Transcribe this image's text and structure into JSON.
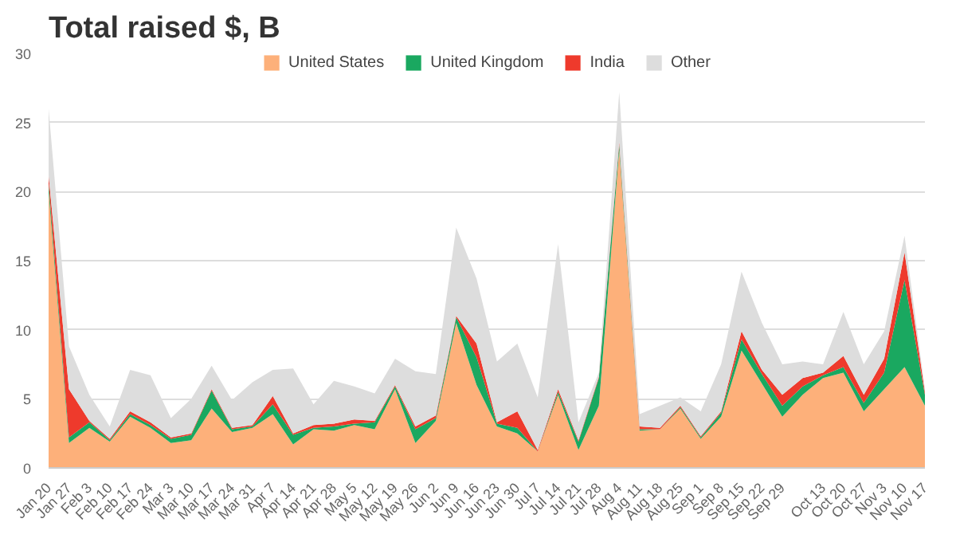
{
  "chart_data": {
    "type": "area",
    "stacked": true,
    "title": "Total raised $, B",
    "categories": [
      "Jan 20",
      "Jan 27",
      "Feb 3",
      "Feb 10",
      "Feb 17",
      "Feb 24",
      "Mar 3",
      "Mar 10",
      "Mar 17",
      "Mar 24",
      "Mar 31",
      "Apr 7",
      "Apr 14",
      "Apr 21",
      "Apr 28",
      "May 5",
      "May 12",
      "May 19",
      "May 26",
      "Jun 2",
      "Jun 9",
      "Jun 16",
      "Jun 23",
      "Jun 30",
      "Jul 7",
      "Jul 14",
      "Jul 21",
      "Jul 28",
      "Aug 4",
      "Aug 11",
      "Aug 18",
      "Aug 25",
      "Sep 1",
      "Sep 8",
      "Sep 15",
      "Sep 22",
      "Sep 29",
      null,
      "Oct 13",
      "Oct 20",
      "Oct 27",
      "Nov 3",
      "Nov 10",
      "Nov 17"
    ],
    "series": [
      {
        "name": "United States",
        "color": "#fdb07a",
        "values": [
          20,
          1.8,
          2.9,
          1.9,
          3.7,
          2.9,
          1.8,
          2.0,
          4.3,
          2.6,
          2.9,
          3.9,
          1.7,
          2.8,
          2.7,
          3.1,
          2.8,
          5.7,
          1.8,
          3.4,
          10.5,
          6.0,
          3.0,
          2.5,
          1.2,
          5.3,
          1.3,
          4.5,
          23,
          2.7,
          2.8,
          4.3,
          2.1,
          3.7,
          8.5,
          6.1,
          3.7,
          5.3,
          6.5,
          6.9,
          4.1,
          5.7,
          7.3,
          4.5
        ]
      },
      {
        "name": "United Kingdom",
        "color": "#1aa860",
        "values": [
          0.6,
          0.4,
          0.4,
          0.1,
          0.2,
          0.2,
          0.3,
          0.4,
          1.3,
          0.2,
          0.1,
          0.7,
          0.7,
          0.1,
          0.3,
          0.1,
          0.5,
          0.2,
          1.0,
          0.2,
          0.4,
          2.0,
          0.2,
          0.4,
          0,
          0.2,
          0.6,
          2.0,
          0.4,
          0.1,
          0,
          0.1,
          0.1,
          0.3,
          0.8,
          0.7,
          0.8,
          0.6,
          0.2,
          0.4,
          0.6,
          1.2,
          6.3,
          0.8
        ]
      },
      {
        "name": "India",
        "color": "#ee3a2c",
        "values": [
          0.6,
          3.5,
          0.1,
          0.1,
          0.2,
          0.2,
          0.1,
          0.1,
          0.1,
          0.1,
          0.1,
          0.6,
          0.1,
          0.2,
          0.2,
          0.3,
          0.1,
          0.1,
          0.2,
          0.2,
          0.1,
          1.0,
          0.1,
          1.2,
          0.1,
          0.2,
          0.1,
          0.1,
          0.2,
          0.2,
          0.1,
          0.1,
          0.1,
          0.1,
          0.6,
          0.3,
          0.8,
          0.6,
          0.2,
          0.8,
          0.6,
          1.0,
          2.0,
          0.2
        ]
      },
      {
        "name": "Other",
        "color": "#dddddd",
        "values": [
          4.8,
          3.1,
          1.9,
          0.9,
          3.0,
          3.4,
          1.4,
          2.5,
          1.7,
          2.0,
          3.1,
          1.9,
          4.7,
          1.5,
          3.1,
          2.4,
          2.0,
          1.9,
          4.0,
          3.0,
          6.4,
          4.7,
          4.4,
          4.9,
          3.8,
          10.5,
          1.3,
          0.3,
          3.6,
          0.9,
          1.6,
          0.6,
          1.8,
          3.4,
          4.3,
          3.4,
          2.2,
          1.2,
          0.6,
          3.2,
          2.2,
          2.0,
          1.2,
          0.2
        ]
      }
    ],
    "ylim": [
      0,
      30
    ],
    "yticks": [
      0,
      5,
      10,
      15,
      20,
      25,
      30
    ],
    "grid": "y",
    "legend": "top"
  }
}
